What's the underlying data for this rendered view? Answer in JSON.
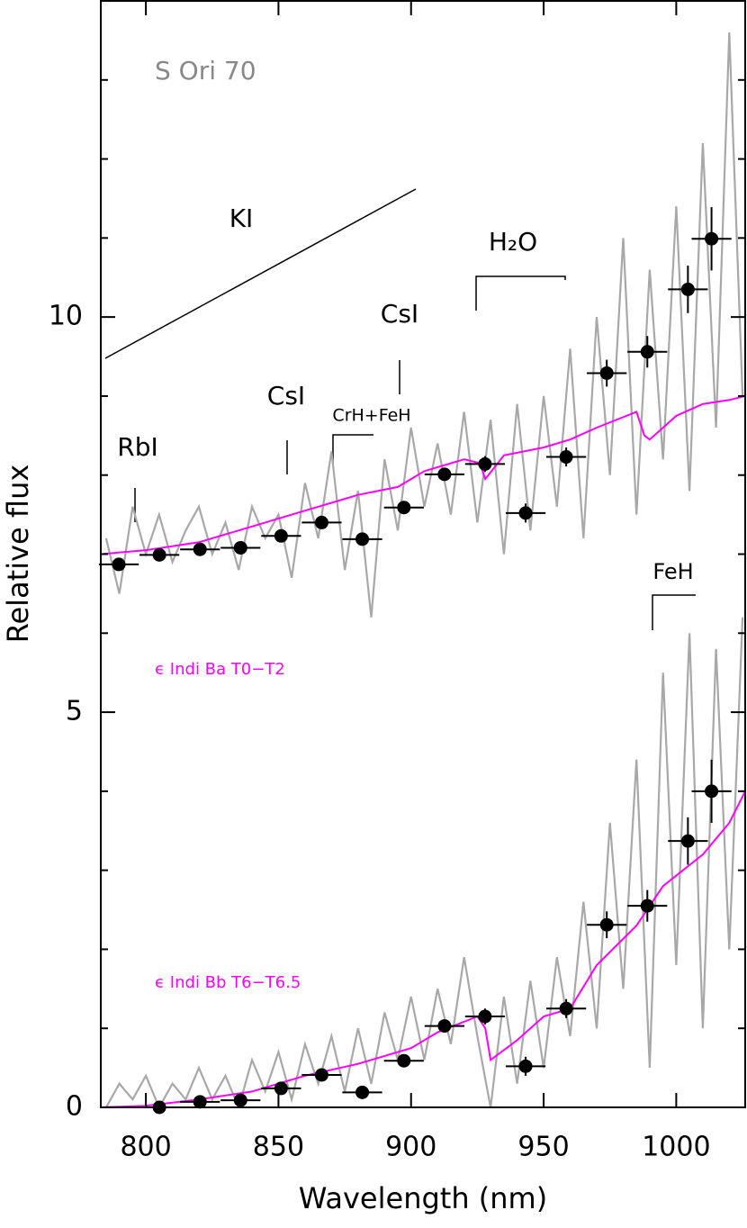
{
  "chart_data": {
    "type": "spectrum",
    "xlabel": "Wavelength (nm)",
    "ylabel": "Relative flux",
    "xlim": [
      783,
      1026
    ],
    "ylim": [
      0,
      14
    ],
    "xticks": [
      800,
      850,
      900,
      950,
      1000
    ],
    "yticks": [
      0,
      5,
      10
    ],
    "yticks_minor": [
      1,
      2,
      3,
      4,
      6,
      7,
      8,
      9,
      11,
      12,
      13
    ],
    "annotations": {
      "object": "S Ori 70",
      "k": "KI",
      "rb": "RbI",
      "cs1": "CsI",
      "cs2": "CsI",
      "crh": "CrH+FeH",
      "h2o": "H₂O",
      "feh": "FeH"
    },
    "series": [
      {
        "type": "line",
        "color": "#a8a8a8",
        "x": [
          785,
          790,
          795,
          800,
          805,
          810,
          815,
          820,
          825,
          830,
          835,
          840,
          845,
          850,
          855,
          860,
          865,
          870,
          875,
          880,
          885,
          890,
          895,
          900,
          905,
          910,
          915,
          920,
          925,
          930,
          935,
          940,
          945,
          950,
          955,
          960,
          965,
          970,
          975,
          980,
          985,
          990,
          995,
          1000,
          1005,
          1010,
          1015,
          1020,
          1025
        ],
        "values": [
          7.2,
          6.5,
          7.6,
          7.0,
          7.5,
          6.9,
          7.3,
          7.6,
          7.0,
          7.4,
          6.8,
          7.6,
          7.2,
          7.5,
          6.7,
          7.9,
          7.2,
          8.3,
          6.8,
          7.8,
          6.2,
          8.2,
          7.3,
          8.6,
          7.6,
          8.4,
          7.5,
          8.8,
          7.4,
          8.7,
          7.0,
          8.9,
          7.3,
          9.0,
          7.6,
          9.6,
          7.2,
          10.0,
          8.0,
          11.0,
          7.5,
          10.6,
          8.2,
          11.4,
          7.8,
          12.2,
          8.6,
          13.6,
          9.0
        ]
      },
      {
        "type": "line",
        "color": "#a8a8a8",
        "x": [
          785,
          790,
          795,
          800,
          805,
          810,
          815,
          820,
          825,
          830,
          835,
          840,
          845,
          850,
          855,
          860,
          865,
          870,
          875,
          880,
          885,
          890,
          895,
          900,
          905,
          910,
          915,
          920,
          925,
          930,
          935,
          940,
          945,
          950,
          955,
          960,
          965,
          970,
          975,
          980,
          985,
          990,
          995,
          1000,
          1005,
          1010,
          1015,
          1020,
          1025
        ],
        "values": [
          0.0,
          0.3,
          0.1,
          0.4,
          0.0,
          0.3,
          0.1,
          0.5,
          0.1,
          0.4,
          0.0,
          0.6,
          0.2,
          0.7,
          0.1,
          0.8,
          0.3,
          0.9,
          0.2,
          1.0,
          0.3,
          1.2,
          0.6,
          1.4,
          0.6,
          1.5,
          0.8,
          1.9,
          0.9,
          0.0,
          1.4,
          0.3,
          1.6,
          0.5,
          1.9,
          0.9,
          2.6,
          1.0,
          3.6,
          1.5,
          4.4,
          0.5,
          5.5,
          1.8,
          6.0,
          1.0,
          5.8,
          2.0,
          6.2
        ]
      },
      {
        "type": "line",
        "color": "#ff00ff",
        "name": "ϵ Indi Ba T0−T2",
        "x": [
          783,
          800,
          820,
          840,
          860,
          880,
          895,
          905,
          920,
          926,
          928,
          935,
          950,
          960,
          970,
          985,
          988,
          990,
          1000,
          1010,
          1020,
          1026
        ],
        "values": [
          7.0,
          7.05,
          7.15,
          7.35,
          7.55,
          7.75,
          7.85,
          8.05,
          8.2,
          8.15,
          7.95,
          8.25,
          8.35,
          8.45,
          8.6,
          8.8,
          8.5,
          8.45,
          8.75,
          8.9,
          8.95,
          9.0
        ]
      },
      {
        "type": "line",
        "color": "#ff00ff",
        "name": "ϵ Indi Bb T6−T6.5",
        "x": [
          783,
          800,
          820,
          840,
          860,
          880,
          900,
          910,
          925,
          928,
          930,
          940,
          950,
          960,
          970,
          985,
          995,
          1010,
          1020,
          1026
        ],
        "values": [
          0.0,
          0.02,
          0.1,
          0.2,
          0.4,
          0.55,
          0.75,
          0.95,
          1.15,
          1.0,
          0.6,
          0.85,
          1.15,
          1.25,
          1.8,
          2.3,
          2.8,
          3.2,
          3.6,
          4.0
        ]
      },
      {
        "type": "errorbar",
        "color": "#000000",
        "xerr": 7.5,
        "x": [
          789.8,
          805.1,
          820.4,
          835.7,
          851.0,
          866.3,
          881.6,
          897.3,
          912.6,
          927.9,
          943.2,
          958.5,
          973.8,
          989.1,
          1004.4,
          1013.3
        ],
        "values": [
          6.87,
          6.99,
          7.06,
          7.08,
          7.23,
          7.4,
          7.19,
          7.59,
          8.01,
          8.14,
          7.52,
          8.23,
          9.29,
          9.56,
          10.35,
          10.99
        ],
        "yerr": [
          0.05,
          0.05,
          0.05,
          0.06,
          0.06,
          0.07,
          0.08,
          0.08,
          0.08,
          0.1,
          0.12,
          0.12,
          0.17,
          0.2,
          0.3,
          0.4
        ]
      },
      {
        "type": "errorbar",
        "color": "#000000",
        "xerr": 7.5,
        "x": [
          805.1,
          820.4,
          835.7,
          851.0,
          866.3,
          881.6,
          897.3,
          912.6,
          927.9,
          943.2,
          958.5,
          973.8,
          989.1,
          1004.4,
          1013.3
        ],
        "values": [
          0.0,
          0.07,
          0.09,
          0.24,
          0.41,
          0.19,
          0.59,
          1.03,
          1.15,
          0.52,
          1.25,
          2.31,
          2.55,
          3.37,
          4.0
        ],
        "yerr": [
          0.05,
          0.05,
          0.06,
          0.06,
          0.07,
          0.08,
          0.08,
          0.08,
          0.1,
          0.12,
          0.12,
          0.17,
          0.2,
          0.3,
          0.4
        ]
      }
    ]
  }
}
